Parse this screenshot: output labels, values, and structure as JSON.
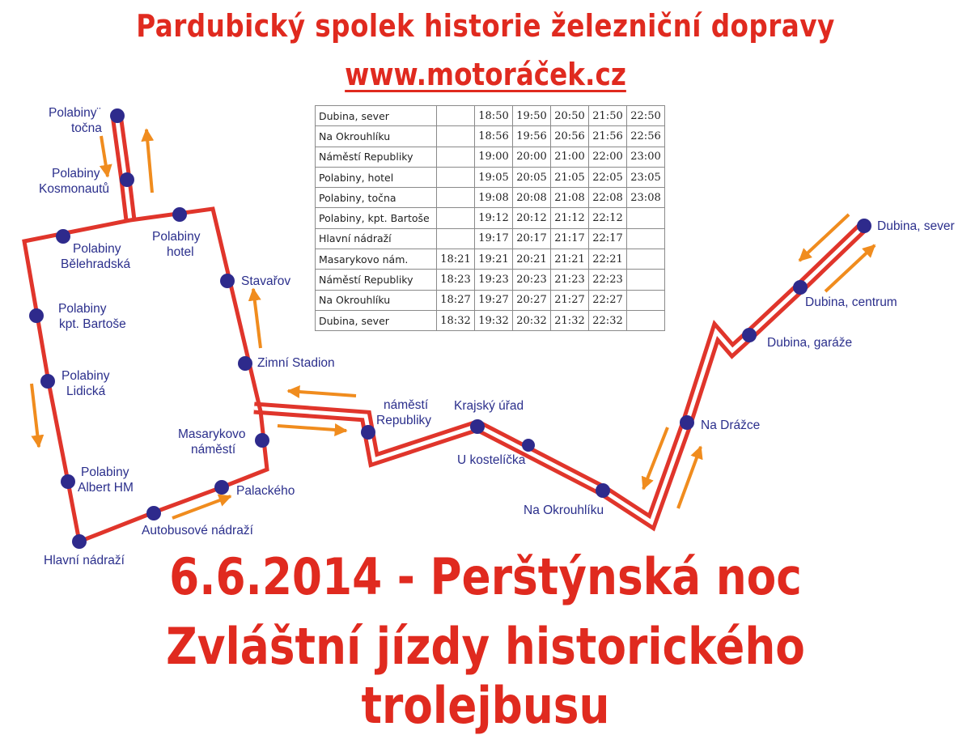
{
  "header": {
    "organization": "Pardubický spolek historie železniční dopravy",
    "website": "www.motoráček.cz"
  },
  "footer": {
    "date_event": "6.6.2014 - Perštýnská noc",
    "subtitle": "Zvláštní jízdy historického trolejbusu"
  },
  "colors": {
    "title_red": "#e02a1f",
    "route_red": "#e0352b",
    "stop_blue": "#2e2a8c",
    "label_blue": "#2b2f8c",
    "arrow_orange": "#f08c1e"
  },
  "stops": [
    {
      "name": "Polabiny točna",
      "line1": "Polabiny¨",
      "line2": "točna"
    },
    {
      "name": "Polabiny Kosmonautů",
      "line1": "Polabiny",
      "line2": "Kosmonautů"
    },
    {
      "name": "Polabiny hotel",
      "line1": "Polabiny",
      "line2": "hotel"
    },
    {
      "name": "Polabiny Bělehradská",
      "line1": "Polabiny",
      "line2": "Bělehradská"
    },
    {
      "name": "Polabiny kpt. Bartoše",
      "line1": "Polabiny",
      "line2": "kpt. Bartoše"
    },
    {
      "name": "Polabiny Lidická",
      "line1": "Polabiny",
      "line2": "Lidická"
    },
    {
      "name": "Stavařov",
      "line1": "Stavařov"
    },
    {
      "name": "Zimní Stadion",
      "line1": "Zimní Stadion"
    },
    {
      "name": "Masarykovo náměstí",
      "line1": "Masarykovo",
      "line2": "náměstí"
    },
    {
      "name": "náměstí Republiky",
      "line1": "náměstí",
      "line2": "Republiky"
    },
    {
      "name": "Krajský úřad",
      "line1": "Krajský úřad"
    },
    {
      "name": "U kostelíčka",
      "line1": "U kostelíčka"
    },
    {
      "name": "Na Okrouhlíku",
      "line1": "Na Okrouhlíku"
    },
    {
      "name": "Na Drážce",
      "line1": "Na Drážce"
    },
    {
      "name": "Dubina, garáže",
      "line1": "Dubina, garáže"
    },
    {
      "name": "Dubina, centrum",
      "line1": "Dubina, centrum"
    },
    {
      "name": "Dubina, sever",
      "line1": "Dubina, sever"
    },
    {
      "name": "Polabiny Albert HM",
      "line1": "Polabiny",
      "line2": "Albert HM"
    },
    {
      "name": "Palackého",
      "line1": "Palackého"
    },
    {
      "name": "Autobusové nádraží",
      "line1": "Autobusové nádraží"
    },
    {
      "name": "Hlavní nádraží",
      "line1": "Hlavní nádraží"
    }
  ],
  "timetable": {
    "rows": [
      {
        "stop": "Dubina, sever",
        "times": [
          "",
          "18:50",
          "19:50",
          "20:50",
          "21:50",
          "22:50"
        ]
      },
      {
        "stop": "Na Okrouhlíku",
        "times": [
          "",
          "18:56",
          "19:56",
          "20:56",
          "21:56",
          "22:56"
        ]
      },
      {
        "stop": "Náměstí Republiky",
        "times": [
          "",
          "19:00",
          "20:00",
          "21:00",
          "22:00",
          "23:00"
        ]
      },
      {
        "stop": "Polabiny, hotel",
        "times": [
          "",
          "19:05",
          "20:05",
          "21:05",
          "22:05",
          "23:05"
        ]
      },
      {
        "stop": "Polabiny, točna",
        "times": [
          "",
          "19:08",
          "20:08",
          "21:08",
          "22:08",
          "23:08"
        ]
      },
      {
        "stop": "Polabiny, kpt. Bartoše",
        "times": [
          "",
          "19:12",
          "20:12",
          "21:12",
          "22:12",
          ""
        ]
      },
      {
        "stop": "Hlavní nádraží",
        "times": [
          "",
          "19:17",
          "20:17",
          "21:17",
          "22:17",
          ""
        ]
      },
      {
        "stop": "Masarykovo nám.",
        "times": [
          "18:21",
          "19:21",
          "20:21",
          "21:21",
          "22:21",
          ""
        ]
      },
      {
        "stop": "Náměstí Republiky",
        "times": [
          "18:23",
          "19:23",
          "20:23",
          "21:23",
          "22:23",
          ""
        ]
      },
      {
        "stop": "Na Okrouhlíku",
        "times": [
          "18:27",
          "19:27",
          "20:27",
          "21:27",
          "22:27",
          ""
        ]
      },
      {
        "stop": "Dubina, sever",
        "times": [
          "18:32",
          "19:32",
          "20:32",
          "21:32",
          "22:32",
          ""
        ]
      }
    ]
  }
}
